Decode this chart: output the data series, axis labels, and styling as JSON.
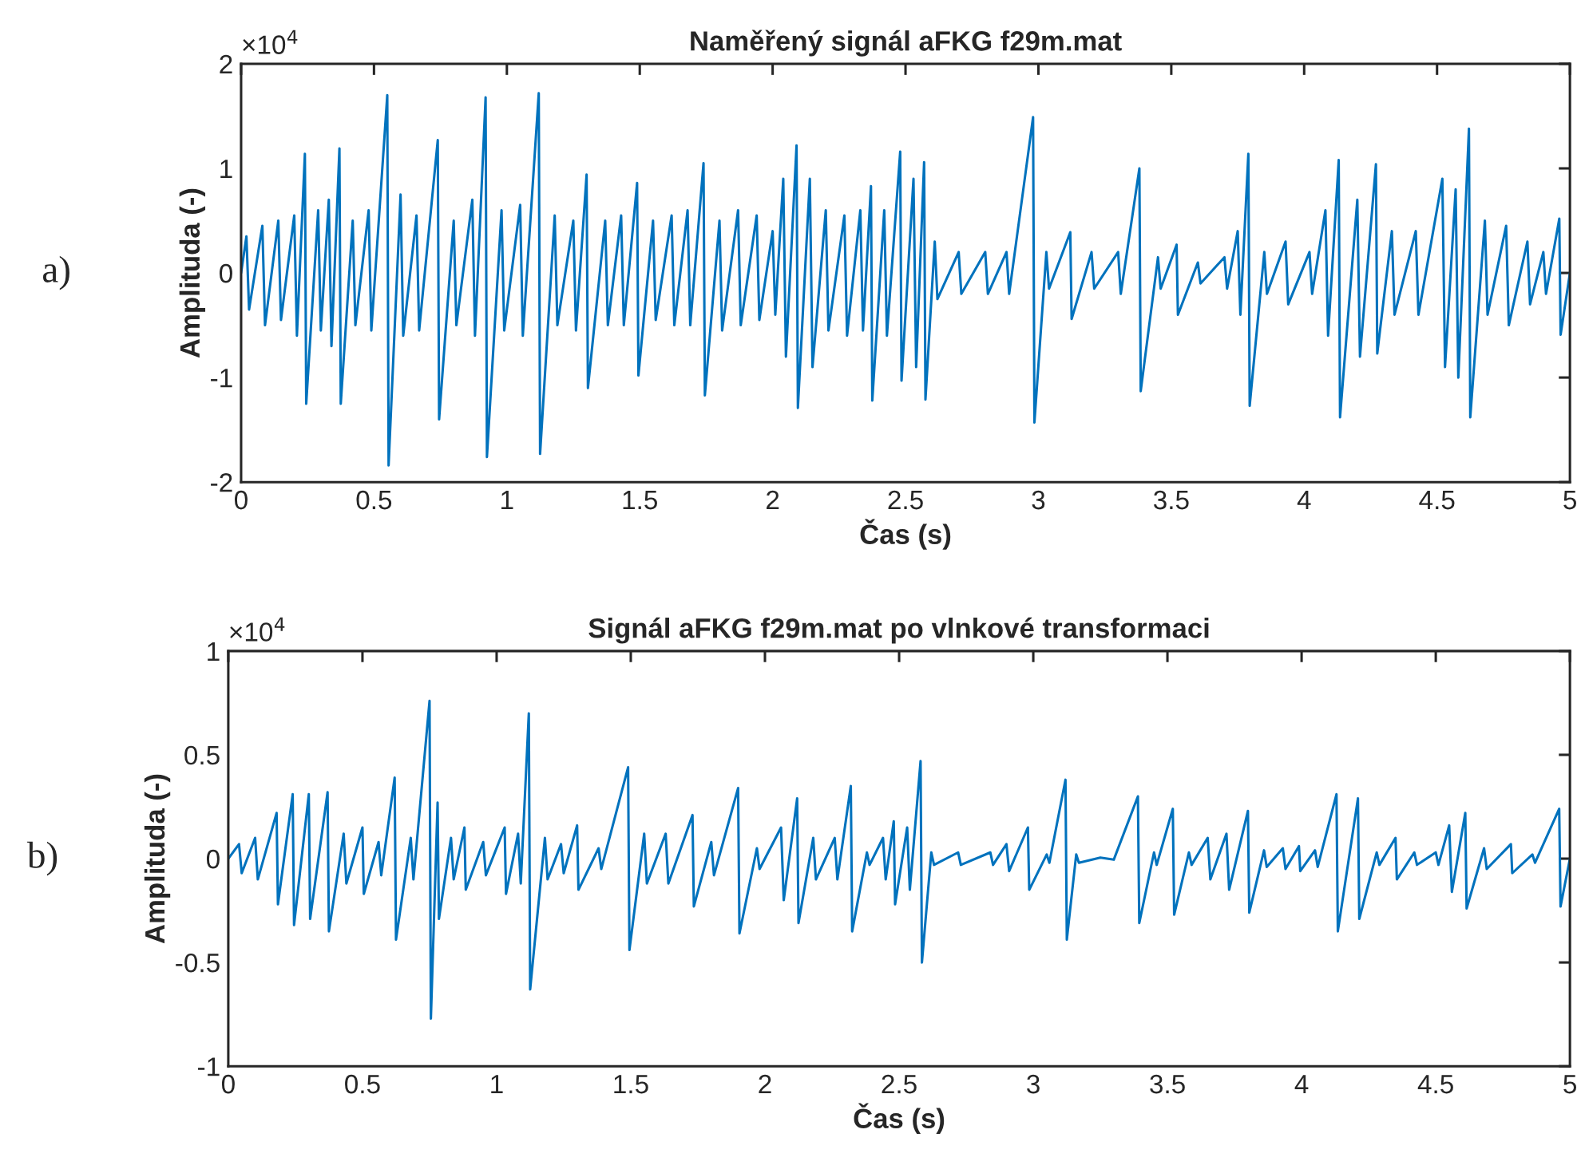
{
  "chart_data": [
    {
      "type": "line",
      "title": "Naměřený signál aFKG f29m.mat",
      "xlabel": "Čas (s)",
      "ylabel": "Amplituda (-)",
      "annotations": [
        "a)",
        "×10$^{4}$"
      ],
      "x": [
        0.0,
        0.02,
        0.03,
        0.08,
        0.09,
        0.14,
        0.15,
        0.2,
        0.21,
        0.24,
        0.245,
        0.29,
        0.3,
        0.33,
        0.34,
        0.37,
        0.375,
        0.42,
        0.43,
        0.48,
        0.49,
        0.55,
        0.555,
        0.6,
        0.61,
        0.66,
        0.67,
        0.74,
        0.745,
        0.8,
        0.81,
        0.87,
        0.88,
        0.92,
        0.925,
        0.98,
        0.99,
        1.05,
        1.06,
        1.12,
        1.125,
        1.18,
        1.19,
        1.25,
        1.26,
        1.3,
        1.305,
        1.37,
        1.38,
        1.43,
        1.44,
        1.49,
        1.495,
        1.55,
        1.56,
        1.62,
        1.63,
        1.68,
        1.69,
        1.74,
        1.745,
        1.8,
        1.81,
        1.87,
        1.88,
        1.94,
        1.95,
        2.0,
        2.01,
        2.04,
        2.05,
        2.09,
        2.095,
        2.14,
        2.15,
        2.2,
        2.21,
        2.27,
        2.28,
        2.33,
        2.34,
        2.37,
        2.375,
        2.42,
        2.43,
        2.48,
        2.485,
        2.53,
        2.54,
        2.57,
        2.575,
        2.61,
        2.62,
        2.7,
        2.71,
        2.8,
        2.81,
        2.88,
        2.89,
        2.98,
        2.985,
        3.03,
        3.04,
        3.12,
        3.125,
        3.2,
        3.21,
        3.3,
        3.31,
        3.38,
        3.385,
        3.45,
        3.46,
        3.52,
        3.525,
        3.6,
        3.61,
        3.7,
        3.71,
        3.75,
        3.76,
        3.79,
        3.795,
        3.85,
        3.86,
        3.93,
        3.94,
        4.02,
        4.03,
        4.08,
        4.09,
        4.13,
        4.135,
        4.2,
        4.21,
        4.27,
        4.275,
        4.33,
        4.34,
        4.42,
        4.43,
        4.52,
        4.53,
        4.57,
        4.58,
        4.62,
        4.625,
        4.68,
        4.69,
        4.76,
        4.77,
        4.84,
        4.85,
        4.9,
        4.91,
        4.96,
        4.965,
        5.0
      ],
      "series": [
        {
          "color": "#0072bd",
          "values": [
            0,
            0.35,
            -0.35,
            0.45,
            -0.5,
            0.5,
            -0.45,
            0.55,
            -0.6,
            1.14,
            -1.25,
            0.6,
            -0.55,
            0.7,
            -0.7,
            1.19,
            -1.25,
            0.5,
            -0.5,
            0.6,
            -0.55,
            1.7,
            -1.84,
            0.75,
            -0.6,
            0.55,
            -0.55,
            1.27,
            -1.4,
            0.5,
            -0.5,
            0.7,
            -0.6,
            1.68,
            -1.76,
            0.6,
            -0.55,
            0.65,
            -0.6,
            1.72,
            -1.73,
            0.55,
            -0.5,
            0.5,
            -0.55,
            0.94,
            -1.1,
            0.5,
            -0.5,
            0.55,
            -0.5,
            0.86,
            -0.98,
            0.5,
            -0.45,
            0.55,
            -0.5,
            0.6,
            -0.5,
            1.05,
            -1.17,
            0.5,
            -0.55,
            0.6,
            -0.5,
            0.55,
            -0.45,
            0.4,
            -0.4,
            0.9,
            -0.8,
            1.22,
            -1.29,
            0.9,
            -0.9,
            0.6,
            -0.55,
            0.55,
            -0.6,
            0.6,
            -0.55,
            0.83,
            -1.22,
            0.6,
            -0.6,
            1.16,
            -1.03,
            0.9,
            -0.9,
            1.06,
            -1.21,
            0.3,
            -0.25,
            0.2,
            -0.2,
            0.2,
            -0.2,
            0.2,
            -0.2,
            1.49,
            -1.43,
            0.2,
            -0.15,
            0.39,
            -0.44,
            0.2,
            -0.15,
            0.2,
            -0.2,
            1.0,
            -1.13,
            0.15,
            -0.15,
            0.27,
            -0.4,
            0.1,
            -0.1,
            0.15,
            -0.15,
            0.4,
            -0.4,
            1.14,
            -1.27,
            0.2,
            -0.2,
            0.3,
            -0.3,
            0.2,
            -0.2,
            0.6,
            -0.6,
            1.08,
            -1.38,
            0.7,
            -0.8,
            1.04,
            -0.77,
            0.4,
            -0.4,
            0.4,
            -0.4,
            0.9,
            -0.9,
            0.8,
            -1.0,
            1.38,
            -1.38,
            0.5,
            -0.4,
            0.45,
            -0.5,
            0.3,
            -0.3,
            0.2,
            -0.2,
            0.52,
            -0.59,
            0
          ]
        }
      ],
      "xlim": [
        0,
        5
      ],
      "ylim": [
        -2,
        2
      ],
      "xticks": [
        0,
        0.5,
        1,
        1.5,
        2,
        2.5,
        3,
        3.5,
        4,
        4.5,
        5
      ],
      "yticks": [
        -2,
        -1,
        0,
        1,
        2
      ]
    },
    {
      "type": "line",
      "title": "Signál aFKG f29m.mat po vlnkové transformaci",
      "xlabel": "Čas (s)",
      "ylabel": "Amplituda (-)",
      "annotations": [
        "b)",
        "×10$^{4}$"
      ],
      "x": [
        0.0,
        0.04,
        0.05,
        0.1,
        0.11,
        0.18,
        0.185,
        0.24,
        0.245,
        0.3,
        0.305,
        0.37,
        0.375,
        0.43,
        0.44,
        0.5,
        0.505,
        0.56,
        0.57,
        0.62,
        0.625,
        0.68,
        0.69,
        0.75,
        0.755,
        0.78,
        0.785,
        0.83,
        0.84,
        0.88,
        0.885,
        0.95,
        0.96,
        1.03,
        1.035,
        1.08,
        1.09,
        1.12,
        1.125,
        1.18,
        1.19,
        1.24,
        1.25,
        1.3,
        1.305,
        1.38,
        1.39,
        1.49,
        1.495,
        1.55,
        1.56,
        1.63,
        1.64,
        1.73,
        1.735,
        1.8,
        1.81,
        1.9,
        1.905,
        1.97,
        1.98,
        2.06,
        2.07,
        2.12,
        2.125,
        2.18,
        2.19,
        2.26,
        2.27,
        2.32,
        2.325,
        2.38,
        2.39,
        2.44,
        2.45,
        2.48,
        2.485,
        2.53,
        2.54,
        2.58,
        2.585,
        2.62,
        2.63,
        2.72,
        2.73,
        2.84,
        2.85,
        2.9,
        2.91,
        2.98,
        2.985,
        3.05,
        3.06,
        3.12,
        3.125,
        3.16,
        3.17,
        3.25,
        3.3,
        3.39,
        3.395,
        3.45,
        3.46,
        3.52,
        3.525,
        3.58,
        3.59,
        3.65,
        3.66,
        3.72,
        3.73,
        3.8,
        3.805,
        3.86,
        3.87,
        3.93,
        3.94,
        3.99,
        3.995,
        4.05,
        4.06,
        4.13,
        4.135,
        4.21,
        4.215,
        4.28,
        4.29,
        4.35,
        4.355,
        4.42,
        4.43,
        4.5,
        4.51,
        4.55,
        4.56,
        4.61,
        4.615,
        4.68,
        4.69,
        4.78,
        4.785,
        4.86,
        4.87,
        4.96,
        4.965,
        5.0
      ],
      "series": [
        {
          "color": "#0072bd",
          "values": [
            0,
            0.07,
            -0.07,
            0.1,
            -0.1,
            0.22,
            -0.22,
            0.31,
            -0.32,
            0.31,
            -0.29,
            0.32,
            -0.35,
            0.12,
            -0.12,
            0.15,
            -0.17,
            0.08,
            -0.08,
            0.39,
            -0.39,
            0.1,
            -0.1,
            0.76,
            -0.77,
            0.27,
            -0.29,
            0.1,
            -0.1,
            0.15,
            -0.15,
            0.08,
            -0.08,
            0.15,
            -0.17,
            0.12,
            -0.12,
            0.7,
            -0.63,
            0.1,
            -0.1,
            0.07,
            -0.07,
            0.16,
            -0.15,
            0.05,
            -0.05,
            0.44,
            -0.44,
            0.12,
            -0.12,
            0.12,
            -0.12,
            0.21,
            -0.23,
            0.08,
            -0.08,
            0.34,
            -0.36,
            0.05,
            -0.05,
            0.15,
            -0.2,
            0.29,
            -0.31,
            0.1,
            -0.1,
            0.1,
            -0.1,
            0.35,
            -0.35,
            0.03,
            -0.03,
            0.1,
            -0.1,
            0.18,
            -0.22,
            0.15,
            -0.15,
            0.47,
            -0.5,
            0.03,
            -0.03,
            0.03,
            -0.03,
            0.03,
            -0.03,
            0.07,
            -0.06,
            0.15,
            -0.15,
            0.02,
            -0.02,
            0.38,
            -0.39,
            0.02,
            -0.02,
            0.005,
            -0.005,
            0.3,
            -0.31,
            0.03,
            -0.03,
            0.24,
            -0.27,
            0.03,
            -0.03,
            0.1,
            -0.1,
            0.12,
            -0.15,
            0.23,
            -0.26,
            0.04,
            -0.04,
            0.05,
            -0.05,
            0.06,
            -0.06,
            0.04,
            -0.04,
            0.31,
            -0.35,
            0.29,
            -0.29,
            0.03,
            -0.03,
            0.1,
            -0.1,
            0.03,
            -0.03,
            0.03,
            -0.03,
            0.16,
            -0.16,
            0.22,
            -0.24,
            0.05,
            -0.05,
            0.07,
            -0.07,
            0.02,
            -0.02,
            0.24,
            -0.23,
            0
          ]
        }
      ],
      "xlim": [
        0,
        5
      ],
      "ylim": [
        -1,
        1
      ],
      "xticks": [
        0,
        0.5,
        1,
        1.5,
        2,
        2.5,
        3,
        3.5,
        4,
        4.5,
        5
      ],
      "yticks": [
        -1,
        -0.5,
        0,
        0.5,
        1
      ]
    }
  ]
}
